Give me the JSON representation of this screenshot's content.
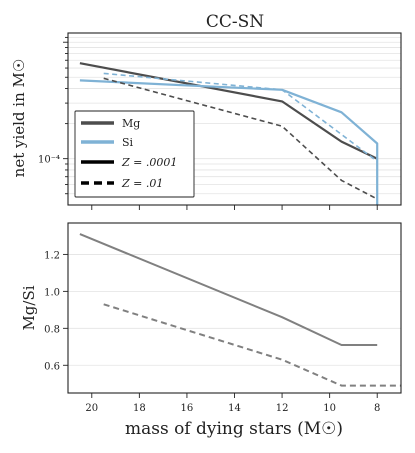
{
  "chart_data": [
    {
      "type": "line",
      "title": "CC-SN",
      "xlabel": "",
      "ylabel": "net yield in M☉",
      "yscale": "log",
      "xlim": [
        21,
        7
      ],
      "ylim": [
        4e-05,
        0.0012
      ],
      "ytick_labels": [
        "10⁻⁴"
      ],
      "grid": true,
      "legend_placement": "lower-left",
      "legend": {
        "entries": [
          {
            "label": "Mg",
            "style": "solid",
            "color": "#4d4d4d"
          },
          {
            "label": "Si",
            "style": "solid",
            "color": "#7fb2d5"
          },
          {
            "label": "Z = .0001",
            "style": "solid",
            "color": "#000000"
          },
          {
            "label": "Z = .01",
            "style": "dashed",
            "color": "#000000"
          }
        ]
      },
      "series": [
        {
          "element": "Mg",
          "metallicity": ".0001",
          "color": "#4d4d4d",
          "dash": false,
          "x": [
            20.5,
            12,
            9.5,
            8
          ],
          "y": [
            0.00066,
            0.00031,
            0.00014,
            0.0001
          ]
        },
        {
          "element": "Si",
          "metallicity": ".0001",
          "color": "#7fb2d5",
          "dash": false,
          "x": [
            20.5,
            12,
            9.5,
            8,
            8
          ],
          "y": [
            0.00047,
            0.00039,
            0.00025,
            0.000135,
            4e-05
          ]
        },
        {
          "element": "Mg",
          "metallicity": ".01",
          "color": "#4d4d4d",
          "dash": true,
          "x": [
            19.5,
            12,
            9.5,
            8
          ],
          "y": [
            0.00049,
            0.00019,
            6.5e-05,
            4.5e-05
          ]
        },
        {
          "element": "Si",
          "metallicity": ".01",
          "color": "#7fb2d5",
          "dash": true,
          "x": [
            19.5,
            12,
            8,
            8
          ],
          "y": [
            0.00054,
            0.00039,
            9.5e-05,
            4e-05
          ]
        }
      ]
    },
    {
      "type": "line",
      "title": "",
      "xlabel": "mass of dying stars (M☉)",
      "ylabel": "Mg/Si",
      "xlim": [
        21,
        7
      ],
      "ylim": [
        0.45,
        1.37
      ],
      "xticks": [
        20,
        18,
        16,
        14,
        12,
        10,
        8
      ],
      "xtick_labels": [
        "20",
        "18",
        "16",
        "14",
        "12",
        "10",
        "8"
      ],
      "yticks": [
        0.6,
        0.8,
        1.0,
        1.2
      ],
      "ytick_labels": [
        "0.6",
        "0.8",
        "1.0",
        "1.2"
      ],
      "grid": true,
      "series": [
        {
          "metallicity": ".0001",
          "color": "#808080",
          "dash": false,
          "x": [
            20.5,
            12,
            9.5,
            8
          ],
          "y": [
            1.31,
            0.86,
            0.71,
            0.71
          ]
        },
        {
          "metallicity": ".01",
          "color": "#808080",
          "dash": true,
          "x": [
            19.5,
            12,
            9.5,
            7
          ],
          "y": [
            0.93,
            0.63,
            0.49,
            0.49
          ]
        }
      ]
    }
  ]
}
